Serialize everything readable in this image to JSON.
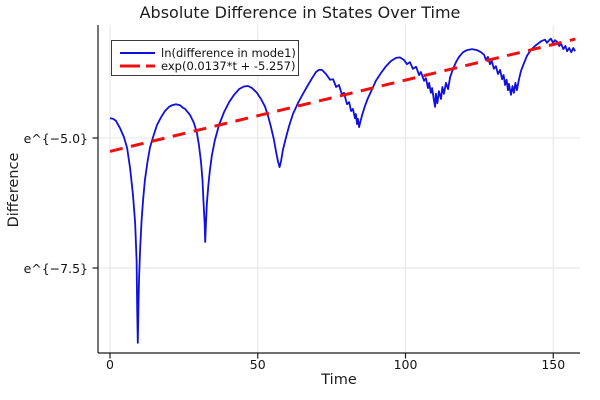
{
  "chart_data": {
    "type": "line",
    "title": "Absolute Difference in States Over Time",
    "xlabel": "Time",
    "ylabel": "Difference",
    "x_ticks": [
      0,
      50,
      100,
      150
    ],
    "y_ticks": [
      {
        "value": -5.0,
        "label": "e^{−5.0}"
      },
      {
        "value": -7.5,
        "label": "e^{−7.5}"
      }
    ],
    "x_range": [
      -4.1,
      159.2
    ],
    "y_range_ln": [
      -9.15,
      -2.83
    ],
    "y_scale": "ln",
    "grid": true,
    "grid_color": "#e6e6e6",
    "axis_color": "#1a1a1a",
    "legend_position": "top-left",
    "series": [
      {
        "name": "ln(difference in mode1)",
        "color": "#0f0fe0",
        "style": "solid",
        "width": 1.8,
        "points": [
          [
            0,
            -4.62
          ],
          [
            1,
            -4.63
          ],
          [
            2,
            -4.67
          ],
          [
            3.4,
            -4.81
          ],
          [
            4.7,
            -4.98
          ],
          [
            5.8,
            -5.19
          ],
          [
            6.8,
            -5.58
          ],
          [
            7.8,
            -6.1
          ],
          [
            8.5,
            -6.62
          ],
          [
            9.0,
            -7.35
          ],
          [
            9.2,
            -8.31
          ],
          [
            9.4,
            -8.94
          ],
          [
            9.6,
            -8.31
          ],
          [
            9.8,
            -7.73
          ],
          [
            10.2,
            -7.15
          ],
          [
            10.7,
            -6.58
          ],
          [
            11.2,
            -6.19
          ],
          [
            11.8,
            -5.81
          ],
          [
            12.7,
            -5.46
          ],
          [
            13.5,
            -5.19
          ],
          [
            14.6,
            -4.98
          ],
          [
            15.9,
            -4.75
          ],
          [
            17.3,
            -4.6
          ],
          [
            18.6,
            -4.48
          ],
          [
            20,
            -4.4
          ],
          [
            21,
            -4.37
          ],
          [
            22.3,
            -4.35
          ],
          [
            23.7,
            -4.37
          ],
          [
            24.7,
            -4.42
          ],
          [
            25.4,
            -4.44
          ],
          [
            27.1,
            -4.56
          ],
          [
            28.4,
            -4.71
          ],
          [
            29.4,
            -4.9
          ],
          [
            30.1,
            -5.13
          ],
          [
            30.8,
            -5.46
          ],
          [
            31.3,
            -5.81
          ],
          [
            31.6,
            -6.19
          ],
          [
            32.0,
            -6.62
          ],
          [
            32.2,
            -7.0
          ],
          [
            32.5,
            -6.62
          ],
          [
            32.8,
            -6.25
          ],
          [
            33.3,
            -5.9
          ],
          [
            33.8,
            -5.62
          ],
          [
            34.5,
            -5.33
          ],
          [
            35.5,
            -5.04
          ],
          [
            36.9,
            -4.75
          ],
          [
            38.6,
            -4.5
          ],
          [
            40.3,
            -4.31
          ],
          [
            42,
            -4.17
          ],
          [
            43.7,
            -4.06
          ],
          [
            45.3,
            -4.01
          ],
          [
            46.7,
            -4.0
          ],
          [
            48.1,
            -4.04
          ],
          [
            49.7,
            -4.13
          ],
          [
            51.1,
            -4.25
          ],
          [
            52.5,
            -4.4
          ],
          [
            53.5,
            -4.58
          ],
          [
            54.5,
            -4.79
          ],
          [
            55.5,
            -5.04
          ],
          [
            56.2,
            -5.27
          ],
          [
            56.9,
            -5.46
          ],
          [
            57.4,
            -5.56
          ],
          [
            57.9,
            -5.44
          ],
          [
            58.5,
            -5.23
          ],
          [
            59.6,
            -4.98
          ],
          [
            60.6,
            -4.77
          ],
          [
            61.9,
            -4.54
          ],
          [
            63.6,
            -4.33
          ],
          [
            65.3,
            -4.15
          ],
          [
            67,
            -3.98
          ],
          [
            68.4,
            -3.85
          ],
          [
            69.7,
            -3.73
          ],
          [
            70.7,
            -3.69
          ],
          [
            71.7,
            -3.69
          ],
          [
            73.1,
            -3.77
          ],
          [
            74.5,
            -3.88
          ],
          [
            75.5,
            -3.87
          ],
          [
            76.5,
            -4.02
          ],
          [
            77.5,
            -3.98
          ],
          [
            78.5,
            -4.17
          ],
          [
            79.2,
            -4.13
          ],
          [
            80.2,
            -4.35
          ],
          [
            80.9,
            -4.31
          ],
          [
            81.6,
            -4.48
          ],
          [
            82.2,
            -4.44
          ],
          [
            82.9,
            -4.62
          ],
          [
            83.2,
            -4.54
          ],
          [
            83.6,
            -4.73
          ],
          [
            83.9,
            -4.63
          ],
          [
            84.3,
            -4.79
          ],
          [
            84.8,
            -4.67
          ],
          [
            85.3,
            -4.56
          ],
          [
            86.3,
            -4.38
          ],
          [
            87.3,
            -4.23
          ],
          [
            88.7,
            -4.06
          ],
          [
            90,
            -3.9
          ],
          [
            91.7,
            -3.75
          ],
          [
            93.4,
            -3.62
          ],
          [
            95.1,
            -3.52
          ],
          [
            96.8,
            -3.46
          ],
          [
            98.1,
            -3.45
          ],
          [
            99.5,
            -3.5
          ],
          [
            100.5,
            -3.58
          ],
          [
            101.5,
            -3.54
          ],
          [
            102.5,
            -3.67
          ],
          [
            103.6,
            -3.63
          ],
          [
            104.6,
            -3.79
          ],
          [
            105.2,
            -3.73
          ],
          [
            106.3,
            -3.9
          ],
          [
            106.9,
            -3.85
          ],
          [
            107.6,
            -4.04
          ],
          [
            108,
            -3.94
          ],
          [
            108.6,
            -4.13
          ],
          [
            109,
            -4.04
          ],
          [
            109.6,
            -4.27
          ],
          [
            110,
            -4.4
          ],
          [
            110.3,
            -4.15
          ],
          [
            110.8,
            -4.33
          ],
          [
            111.3,
            -4.1
          ],
          [
            112,
            -4.25
          ],
          [
            112.5,
            -4.02
          ],
          [
            113,
            -4.15
          ],
          [
            113.7,
            -3.94
          ],
          [
            114.4,
            -4.06
          ],
          [
            115.1,
            -3.83
          ],
          [
            116.1,
            -3.67
          ],
          [
            117.1,
            -3.54
          ],
          [
            118.1,
            -3.44
          ],
          [
            119.5,
            -3.35
          ],
          [
            120.8,
            -3.31
          ],
          [
            122.5,
            -3.29
          ],
          [
            124.2,
            -3.31
          ],
          [
            125.5,
            -3.35
          ],
          [
            126.6,
            -3.4
          ],
          [
            127.2,
            -3.5
          ],
          [
            127.9,
            -3.44
          ],
          [
            128.6,
            -3.58
          ],
          [
            129.2,
            -3.52
          ],
          [
            129.9,
            -3.67
          ],
          [
            130.6,
            -3.62
          ],
          [
            131.3,
            -3.77
          ],
          [
            132,
            -3.69
          ],
          [
            132.7,
            -3.87
          ],
          [
            133.2,
            -3.79
          ],
          [
            133.7,
            -3.98
          ],
          [
            134.2,
            -3.88
          ],
          [
            134.7,
            -4.08
          ],
          [
            135,
            -3.96
          ],
          [
            135.7,
            -4.17
          ],
          [
            136.2,
            -4.0
          ],
          [
            136.7,
            -4.13
          ],
          [
            137.2,
            -3.94
          ],
          [
            137.7,
            -4.08
          ],
          [
            138.4,
            -3.87
          ],
          [
            139.1,
            -3.71
          ],
          [
            140.1,
            -3.56
          ],
          [
            141.1,
            -3.42
          ],
          [
            142.4,
            -3.31
          ],
          [
            143.8,
            -3.23
          ],
          [
            145.2,
            -3.17
          ],
          [
            146.2,
            -3.13
          ],
          [
            147.2,
            -3.11
          ],
          [
            147.9,
            -3.17
          ],
          [
            148.6,
            -3.12
          ],
          [
            149.2,
            -3.09
          ],
          [
            149.9,
            -3.17
          ],
          [
            150.6,
            -3.12
          ],
          [
            151.3,
            -3.15
          ],
          [
            152,
            -3.23
          ],
          [
            152.7,
            -3.19
          ],
          [
            153.4,
            -3.29
          ],
          [
            154.1,
            -3.23
          ],
          [
            154.7,
            -3.33
          ],
          [
            155.4,
            -3.27
          ],
          [
            156.1,
            -3.35
          ],
          [
            156.8,
            -3.27
          ],
          [
            157.4,
            -3.33
          ]
        ]
      },
      {
        "name": "exp(0.0137*t + -5.257)",
        "color": "#ee0f0f",
        "style": "dashed",
        "width": 3,
        "slope": 0.0137,
        "intercept": -5.257,
        "points": [
          [
            0,
            -5.257
          ],
          [
            157.5,
            -3.099
          ]
        ]
      }
    ]
  }
}
